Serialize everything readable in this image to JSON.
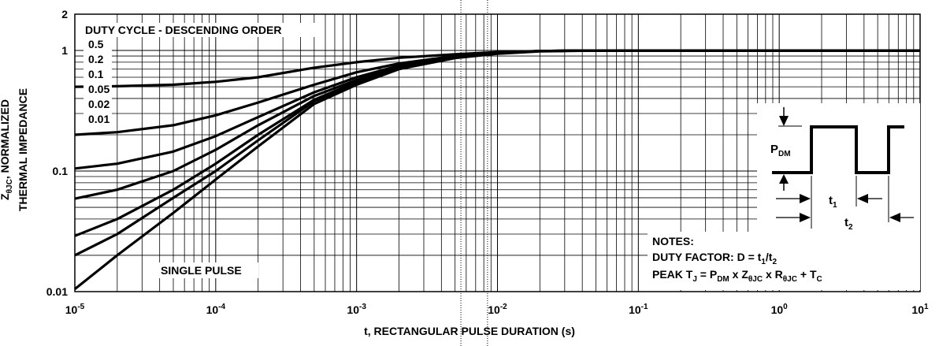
{
  "chart_data": {
    "type": "line",
    "xscale": "log",
    "yscale": "log",
    "xlim": [
      1e-05,
      10
    ],
    "ylim": [
      0.01,
      2
    ],
    "x_ticks": [
      "10-5",
      "10-4",
      "10-3",
      "10-2",
      "10-1",
      "100",
      "101"
    ],
    "y_ticks": [
      "0.01",
      "0.1",
      "1",
      "2"
    ],
    "xlabel": "t, RECTANGULAR PULSE DURATION (s)",
    "ylabel": {
      "line1": "Z",
      "line1_sub": "θJC",
      "line1_rest": ", NORMALIZED",
      "line2": "THERMAL IMPEDANCE"
    },
    "legend_title": "DUTY CYCLE - DESCENDING ORDER",
    "legend": [
      "0.5",
      "0.2",
      "0.1",
      "0.05",
      "0.02",
      "0.01"
    ],
    "single_pulse_label": "SINGLE PULSE",
    "notes": {
      "title": "NOTES:",
      "line1": "DUTY FACTOR: D = t1/t2",
      "line2": "PEAK TJ = PDM x ZθJC x RθJC + TC"
    },
    "inset_labels": {
      "pdm": "PDM",
      "t1": "t1",
      "t2": "t2"
    },
    "series": [
      {
        "d": 0.5,
        "points": [
          [
            1e-05,
            0.5
          ],
          [
            2e-05,
            0.505
          ],
          [
            5e-05,
            0.52
          ],
          [
            0.0001,
            0.55
          ],
          [
            0.0002,
            0.6
          ],
          [
            0.0005,
            0.72
          ],
          [
            0.001,
            0.8
          ],
          [
            0.002,
            0.87
          ],
          [
            0.005,
            0.93
          ],
          [
            0.01,
            0.97
          ],
          [
            0.02,
            0.99
          ],
          [
            0.05,
            1
          ],
          [
            10,
            1
          ]
        ]
      },
      {
        "d": 0.2,
        "points": [
          [
            1e-05,
            0.2
          ],
          [
            2e-05,
            0.21
          ],
          [
            5e-05,
            0.24
          ],
          [
            0.0001,
            0.29
          ],
          [
            0.0002,
            0.37
          ],
          [
            0.0005,
            0.52
          ],
          [
            0.001,
            0.66
          ],
          [
            0.002,
            0.78
          ],
          [
            0.005,
            0.9
          ],
          [
            0.01,
            0.96
          ],
          [
            0.02,
            0.99
          ],
          [
            0.05,
            1
          ],
          [
            10,
            1
          ]
        ]
      },
      {
        "d": 0.1,
        "points": [
          [
            1e-05,
            0.105
          ],
          [
            2e-05,
            0.115
          ],
          [
            5e-05,
            0.145
          ],
          [
            0.0001,
            0.195
          ],
          [
            0.0002,
            0.28
          ],
          [
            0.0005,
            0.45
          ],
          [
            0.001,
            0.6
          ],
          [
            0.002,
            0.75
          ],
          [
            0.005,
            0.89
          ],
          [
            0.01,
            0.955
          ],
          [
            0.02,
            0.99
          ],
          [
            0.05,
            1
          ],
          [
            10,
            1
          ]
        ]
      },
      {
        "d": 0.05,
        "points": [
          [
            1e-05,
            0.059
          ],
          [
            2e-05,
            0.07
          ],
          [
            5e-05,
            0.1
          ],
          [
            0.0001,
            0.15
          ],
          [
            0.0002,
            0.24
          ],
          [
            0.0005,
            0.42
          ],
          [
            0.001,
            0.57
          ],
          [
            0.002,
            0.73
          ],
          [
            0.005,
            0.88
          ],
          [
            0.01,
            0.95
          ],
          [
            0.02,
            0.99
          ],
          [
            0.05,
            1
          ],
          [
            10,
            1
          ]
        ]
      },
      {
        "d": 0.02,
        "points": [
          [
            1e-05,
            0.029
          ],
          [
            2e-05,
            0.04
          ],
          [
            5e-05,
            0.07
          ],
          [
            0.0001,
            0.115
          ],
          [
            0.0002,
            0.2
          ],
          [
            0.0005,
            0.39
          ],
          [
            0.001,
            0.55
          ],
          [
            0.002,
            0.72
          ],
          [
            0.005,
            0.875
          ],
          [
            0.01,
            0.95
          ],
          [
            0.02,
            0.99
          ],
          [
            0.05,
            1
          ],
          [
            10,
            1
          ]
        ]
      },
      {
        "d": 0.01,
        "points": [
          [
            1e-05,
            0.02
          ],
          [
            2e-05,
            0.03
          ],
          [
            5e-05,
            0.06
          ],
          [
            0.0001,
            0.1
          ],
          [
            0.0002,
            0.18
          ],
          [
            0.0005,
            0.38
          ],
          [
            0.001,
            0.54
          ],
          [
            0.002,
            0.715
          ],
          [
            0.005,
            0.87
          ],
          [
            0.01,
            0.945
          ],
          [
            0.02,
            0.99
          ],
          [
            0.05,
            1
          ],
          [
            10,
            1
          ]
        ]
      },
      {
        "d": "single pulse",
        "points": [
          [
            1e-05,
            0.0105
          ],
          [
            2e-05,
            0.02
          ],
          [
            5e-05,
            0.045
          ],
          [
            0.0001,
            0.085
          ],
          [
            0.0002,
            0.16
          ],
          [
            0.0005,
            0.36
          ],
          [
            0.001,
            0.52
          ],
          [
            0.002,
            0.7
          ],
          [
            0.005,
            0.865
          ],
          [
            0.01,
            0.94
          ],
          [
            0.02,
            0.985
          ],
          [
            0.05,
            1
          ],
          [
            10,
            1
          ]
        ]
      }
    ]
  },
  "colors": {
    "line": "#000000",
    "grid": "#000000",
    "background": "#ffffff"
  }
}
